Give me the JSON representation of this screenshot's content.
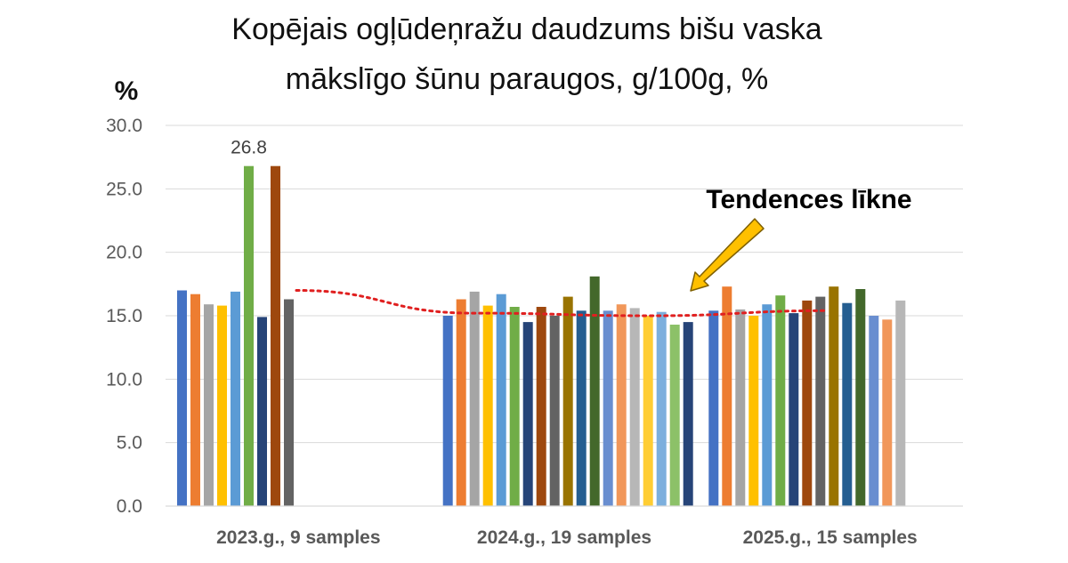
{
  "chart_data": {
    "type": "bar",
    "title_lines": [
      "Kopējais ogļūdeņražu daudzums bišu vaska",
      "mākslīgo šūnu paraugos, g/100g, %"
    ],
    "y_unit_label": "%",
    "ylim": [
      0,
      30
    ],
    "y_ticks": [
      "0.0",
      "5.0",
      "10.0",
      "15.0",
      "20.0",
      "25.0",
      "30.0"
    ],
    "grid": true,
    "legend": "none",
    "categories": [
      "2023.g., 9 samples",
      "2024.g., 19 samples",
      "2025.g., 15 samples"
    ],
    "groups": [
      {
        "category": "2023.g., 9 samples",
        "values": [
          17.0,
          16.7,
          15.9,
          15.8,
          16.9,
          26.8,
          14.9,
          26.8,
          16.3
        ],
        "colors": [
          "#4472c4",
          "#ed7d31",
          "#a5a5a5",
          "#ffc000",
          "#5b9bd5",
          "#70ad47",
          "#264478",
          "#9e480e",
          "#636363"
        ]
      },
      {
        "category": "2024.g., 19 samples",
        "values": [
          15.0,
          16.3,
          16.9,
          15.8,
          16.7,
          15.7,
          14.5,
          15.7,
          15.0,
          16.5,
          15.4,
          18.1,
          15.4,
          15.9,
          15.6,
          15.0,
          15.3,
          14.3,
          14.5
        ],
        "colors": [
          "#4472c4",
          "#ed7d31",
          "#a5a5a5",
          "#ffc000",
          "#5b9bd5",
          "#70ad47",
          "#264478",
          "#9e480e",
          "#636363",
          "#997300",
          "#255e91",
          "#43682b",
          "#698ed0",
          "#f1975a",
          "#b7b7b7",
          "#ffcd33",
          "#7cafdd",
          "#8cc168",
          "#264478"
        ]
      },
      {
        "category": "2025.g., 15 samples",
        "values": [
          15.4,
          17.3,
          15.5,
          15.0,
          15.9,
          16.6,
          15.2,
          16.2,
          16.5,
          17.3,
          16.0,
          17.1,
          15.0,
          14.7,
          16.2
        ],
        "colors": [
          "#4472c4",
          "#ed7d31",
          "#a5a5a5",
          "#ffc000",
          "#5b9bd5",
          "#70ad47",
          "#264478",
          "#9e480e",
          "#636363",
          "#997300",
          "#255e91",
          "#43682b",
          "#698ed0",
          "#f1975a",
          "#b7b7b7"
        ]
      }
    ],
    "data_labels": [
      {
        "category": "2023.g., 9 samples",
        "bar_index": 5,
        "text": "26.8"
      }
    ],
    "trend_line": {
      "style": "red dotted",
      "values": [
        17.0,
        15.2,
        15.0,
        15.4
      ]
    },
    "annotation": {
      "text": "Tendences līkne",
      "arrow_color": "#ffc000"
    }
  }
}
